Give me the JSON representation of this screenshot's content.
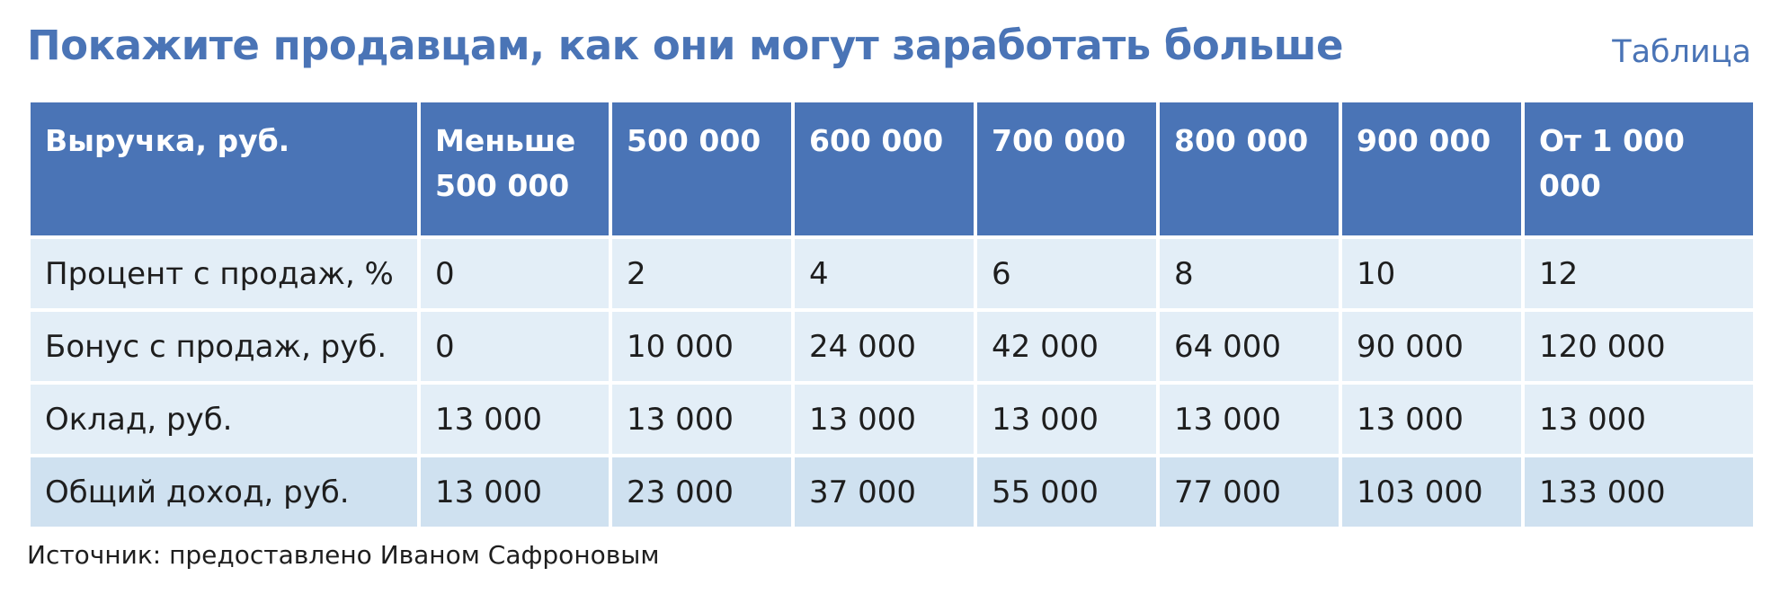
{
  "title": "Покажите продавцам, как они могут заработать больше",
  "tag": "Таблица",
  "table": {
    "headers": [
      "Выручка, руб.",
      "Меньше 500 000",
      "500 000",
      "600 000",
      "700 000",
      "800 000",
      "900 000",
      "От 1 000 000"
    ],
    "rows": [
      [
        "Процент с продаж, %",
        "0",
        "2",
        "4",
        "6",
        "8",
        "10",
        "12"
      ],
      [
        "Бонус с продаж, руб.",
        "0",
        "10 000",
        "24 000",
        "42 000",
        "64 000",
        "90 000",
        "120 000"
      ],
      [
        "Оклад, руб.",
        "13 000",
        "13 000",
        "13 000",
        "13 000",
        "13 000",
        "13 000",
        "13 000"
      ],
      [
        "Общий доход, руб.",
        "13 000",
        "23 000",
        "37 000",
        "55 000",
        "77 000",
        "103 000",
        "133 000"
      ]
    ]
  },
  "source": "Источник: предоставлено Иваном Сафроновым",
  "colors": {
    "accent": "#4a74b6",
    "row_background": "#e3eef7",
    "total_row_background": "#cfe1f0"
  }
}
